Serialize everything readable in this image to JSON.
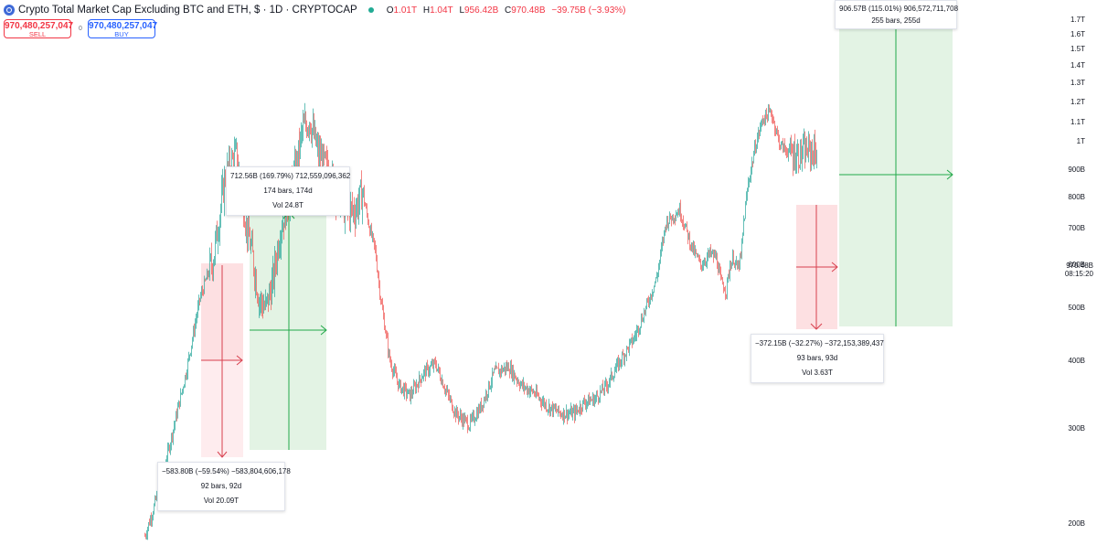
{
  "header": {
    "title": "Crypto Total Market Cap Excluding BTC and ETH, $ · 1D · CRYPTOCAP",
    "o_label": "O",
    "o_value": "1.01T",
    "h_label": "H",
    "h_value": "1.04T",
    "l_label": "L",
    "l_value": "956.42B",
    "c_label": "C",
    "c_value": "970.48B",
    "change": "−39.75B (−3.93%)"
  },
  "trade": {
    "sell_price": "970,480,257,047",
    "sell_label": "SELL",
    "spread": "0",
    "buy_price": "970,480,257,047",
    "buy_label": "BUY"
  },
  "price_tag": {
    "value": "970.48B",
    "time": "08:15:20"
  },
  "colors": {
    "up": "#26a69a",
    "down": "#ef5350",
    "long_zone": "#e3f3e4",
    "short_zone": "#fde0e2",
    "long_line": "#22a84a",
    "short_line": "#d8414f"
  },
  "chart_data": {
    "type": "line",
    "title": "Crypto Total Market Cap Excluding BTC and ETH, $ · 1D · CRYPTOCAP",
    "ylabel": "",
    "xlabel": "",
    "y_scale": "log",
    "ylim": [
      190,
      1750
    ],
    "y_ticks": [
      {
        "label": "1.7T",
        "value": 1700
      },
      {
        "label": "1.6T",
        "value": 1600
      },
      {
        "label": "1.5T",
        "value": 1500
      },
      {
        "label": "1.4T",
        "value": 1400
      },
      {
        "label": "1.3T",
        "value": 1300
      },
      {
        "label": "1.2T",
        "value": 1200
      },
      {
        "label": "1.1T",
        "value": 1100
      },
      {
        "label": "1T",
        "value": 1000
      },
      {
        "label": "900B",
        "value": 900
      },
      {
        "label": "800B",
        "value": 800
      },
      {
        "label": "700B",
        "value": 700
      },
      {
        "label": "600B",
        "value": 600
      },
      {
        "label": "500B",
        "value": 500
      },
      {
        "label": "400B",
        "value": 400
      },
      {
        "label": "300B",
        "value": 300
      },
      {
        "label": "200B",
        "value": 200
      }
    ],
    "series": [
      {
        "x_bar": [
          0,
          10,
          25,
          45,
          60,
          75,
          88,
          100,
          112,
          118,
          125,
          132,
          140,
          148,
          158,
          166,
          172,
          180,
          190,
          200,
          210,
          220,
          230,
          238,
          246,
          252,
          258,
          268,
          278,
          290,
          305,
          318,
          330,
          340,
          355,
          368,
          382,
          398,
          412,
          425,
          440,
          455,
          470,
          480,
          492,
          505,
          520,
          535,
          548,
          560,
          570,
          585,
          598,
          608,
          618,
          625,
          630,
          636,
          640,
          644,
          648,
          652,
          655,
          660,
          668,
          676,
          685,
          695,
          705,
          715,
          725,
          735
        ],
        "values": [
          190,
          215,
          270,
          380,
          520,
          620,
          880,
          960,
          700,
          620,
          520,
          500,
          560,
          700,
          800,
          920,
          1060,
          1120,
          960,
          900,
          820,
          760,
          760,
          820,
          700,
          640,
          520,
          400,
          360,
          345,
          380,
          395,
          350,
          320,
          305,
          330,
          380,
          390,
          360,
          350,
          330,
          320,
          320,
          335,
          340,
          360,
          400,
          440,
          500,
          570,
          720,
          760,
          650,
          600,
          630,
          620,
          560,
          540,
          600,
          620,
          590,
          620,
          720,
          850,
          1000,
          1120,
          1150,
          1000,
          970,
          960,
          975,
          970
        ]
      }
    ],
    "measurements": [
      {
        "kind": "short",
        "line1": "−583.80B (−59.54%) −583,804,606,178",
        "line2": "92 bars, 92d",
        "line3": "Vol 20.09T"
      },
      {
        "kind": "long",
        "line1": "712.56B (169.79%) 712,559,096,362",
        "line2": "174 bars, 174d",
        "line3": "Vol 24.8T"
      },
      {
        "kind": "short",
        "line1": "−372.15B (−32.27%) −372,153,389,437",
        "line2": "93 bars, 93d",
        "line3": "Vol 3.63T"
      },
      {
        "kind": "long",
        "line1": "906.57B (115.01%) 906,572,711,708",
        "line2": "255 bars, 255d",
        "line3": ""
      }
    ]
  }
}
